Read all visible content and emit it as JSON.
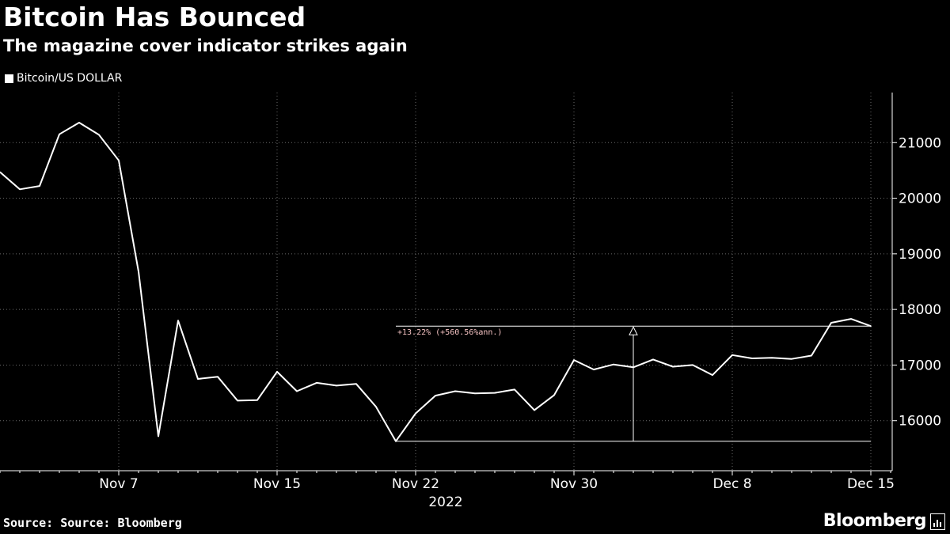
{
  "title": "Bitcoin Has Bounced",
  "subtitle": "The magazine cover indicator strikes again",
  "legend_label": "Bitcoin/US DOLLAR",
  "source": "Source: Source: Bloomberg",
  "brand": "Bloomberg",
  "chart_data": {
    "type": "line",
    "title": "Bitcoin Has Bounced",
    "subtitle": "The magazine cover indicator strikes again",
    "xlabel": "2022",
    "ylabel": "",
    "ylim": [
      15100,
      21900
    ],
    "yticks": [
      16000,
      17000,
      18000,
      19000,
      20000,
      21000
    ],
    "xlim": [
      "2022-11-01",
      "2022-12-16"
    ],
    "xticks": [
      {
        "date": "2022-11-07",
        "label": "Nov 7"
      },
      {
        "date": "2022-11-15",
        "label": "Nov 15"
      },
      {
        "date": "2022-11-22",
        "label": "Nov 22"
      },
      {
        "date": "2022-11-30",
        "label": "Nov 30"
      },
      {
        "date": "2022-12-08",
        "label": "Dec 8"
      },
      {
        "date": "2022-12-15",
        "label": "Dec 15"
      }
    ],
    "year_label": "2022",
    "grid": true,
    "legend": "top-left",
    "series": [
      {
        "name": "Bitcoin/US DOLLAR",
        "color": "#ffffff",
        "x": [
          "2022-11-01",
          "2022-11-02",
          "2022-11-03",
          "2022-11-04",
          "2022-11-05",
          "2022-11-06",
          "2022-11-07",
          "2022-11-08",
          "2022-11-09",
          "2022-11-10",
          "2022-11-11",
          "2022-11-12",
          "2022-11-13",
          "2022-11-14",
          "2022-11-15",
          "2022-11-16",
          "2022-11-17",
          "2022-11-18",
          "2022-11-19",
          "2022-11-20",
          "2022-11-21",
          "2022-11-22",
          "2022-11-23",
          "2022-11-24",
          "2022-11-25",
          "2022-11-26",
          "2022-11-27",
          "2022-11-28",
          "2022-11-29",
          "2022-11-30",
          "2022-12-01",
          "2022-12-02",
          "2022-12-03",
          "2022-12-04",
          "2022-12-05",
          "2022-12-06",
          "2022-12-07",
          "2022-12-08",
          "2022-12-09",
          "2022-12-10",
          "2022-12-11",
          "2022-12-12",
          "2022-12-13",
          "2022-12-14",
          "2022-12-15"
        ],
        "values": [
          20470,
          20160,
          20220,
          21150,
          21360,
          21140,
          20680,
          18680,
          15720,
          17800,
          16750,
          16790,
          16360,
          16370,
          16880,
          16530,
          16680,
          16630,
          16660,
          16250,
          15630,
          16130,
          16450,
          16530,
          16490,
          16500,
          16560,
          16190,
          16460,
          17090,
          16920,
          17010,
          16960,
          17100,
          16970,
          17000,
          16820,
          17180,
          17120,
          17130,
          17110,
          17170,
          17760,
          17830,
          17700
        ]
      }
    ],
    "annotations": [
      {
        "type": "range",
        "label": "+13.22% (+560.56%ann.)",
        "low": 15630,
        "high": 17700,
        "start": "2022-11-21",
        "end": "2022-12-15",
        "arrow_at": "2022-12-03"
      }
    ]
  }
}
